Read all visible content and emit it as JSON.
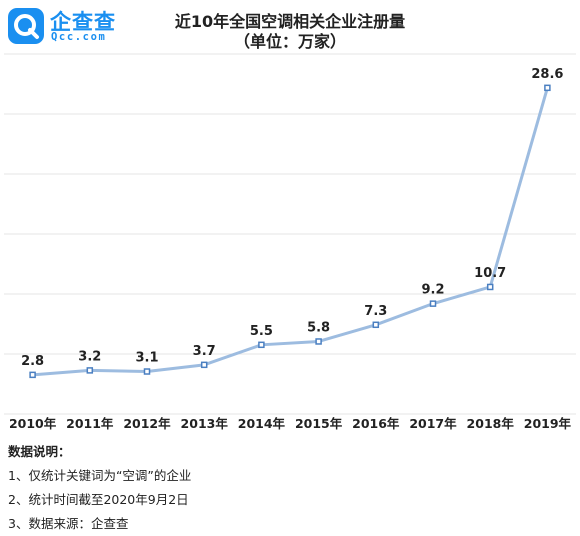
{
  "brand": {
    "name_cn": "企查查",
    "name_en": "Qcc.com",
    "logo_icon": "magnifier-q-icon",
    "color": "#1a8ff0"
  },
  "chart_data": {
    "type": "line",
    "title": "近10年全国空调相关企业注册量",
    "subtitle": "（单位：万家）",
    "categories": [
      "2010年",
      "2011年",
      "2012年",
      "2013年",
      "2014年",
      "2015年",
      "2016年",
      "2017年",
      "2018年",
      "2019年"
    ],
    "series": [
      {
        "values": [
          2.8,
          3.2,
          3.1,
          3.7,
          5.5,
          5.8,
          7.3,
          9.2,
          10.7,
          28.6
        ]
      }
    ],
    "data_labels": [
      "2.8",
      "3.2",
      "3.1",
      "3.7",
      "5.5",
      "5.8",
      "7.3",
      "9.2",
      "10.7",
      "28.6"
    ],
    "ylim": [
      0,
      32
    ],
    "grid": "horizontal",
    "line_color": "#9dbce0",
    "marker_color": "#4a7fc1"
  },
  "notes": {
    "heading": "数据说明：",
    "items": [
      "1、仅统计关键词为“空调”的企业",
      "2、统计时间截至2020年9月2日",
      "3、数据来源：企查查"
    ]
  }
}
